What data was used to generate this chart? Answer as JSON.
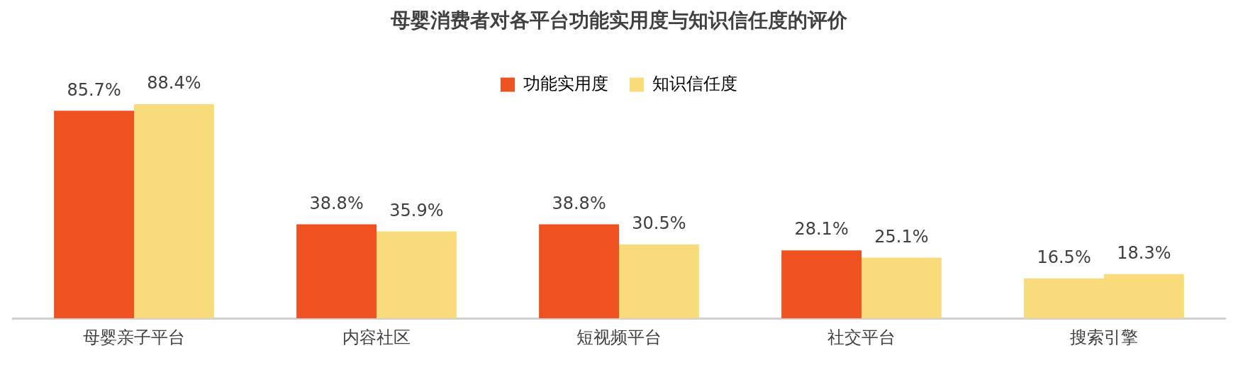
{
  "chart_data": {
    "type": "bar",
    "title": "母婴消费者对各平台功能实用度与知识信任度的评价",
    "categories": [
      "母婴亲子平台",
      "内容社区",
      "短视频平台",
      "社交平台",
      "搜索引擎"
    ],
    "series": [
      {
        "name": "功能实用度",
        "color": "#ee5220",
        "colors": [
          "#ee5220",
          "#ee5220",
          "#ee5220",
          "#ee5220",
          "#f8dc7c"
        ],
        "values": [
          85.7,
          38.8,
          38.8,
          28.1,
          16.5
        ],
        "value_labels": [
          "85.7%",
          "38.8%",
          "38.8%",
          "28.1%",
          "16.5%"
        ]
      },
      {
        "name": "知识信任度",
        "color": "#f8dc7c",
        "values": [
          88.4,
          35.9,
          30.5,
          25.1,
          18.3
        ],
        "value_labels": [
          "88.4%",
          "35.9%",
          "30.5%",
          "25.1%",
          "18.3%"
        ]
      }
    ],
    "legend": "top",
    "grid": false
  }
}
